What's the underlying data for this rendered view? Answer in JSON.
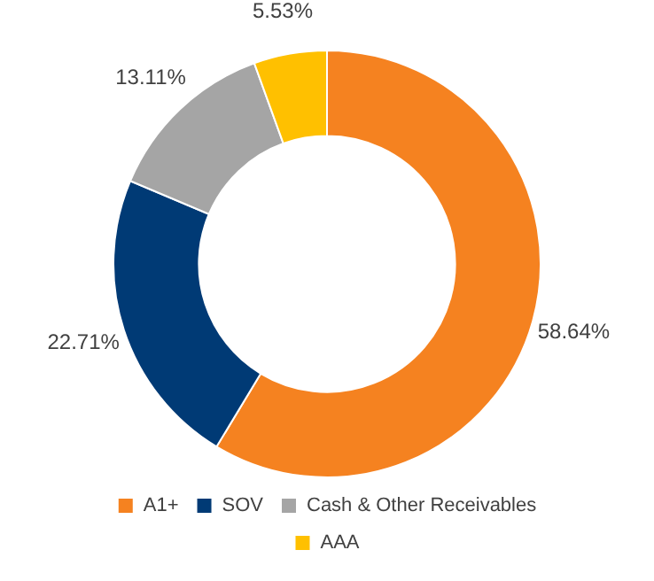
{
  "chart_data": {
    "type": "donut",
    "categories": [
      "A1+",
      "SOV",
      "Cash & Other Receivables",
      "AAA"
    ],
    "values": [
      58.64,
      22.71,
      13.11,
      5.53
    ],
    "value_labels": [
      "58.64%",
      "22.71%",
      "13.11%",
      "5.53%"
    ],
    "colors": [
      "#f58220",
      "#003a75",
      "#a5a5a5",
      "#ffc000"
    ],
    "legend": "bottom"
  }
}
